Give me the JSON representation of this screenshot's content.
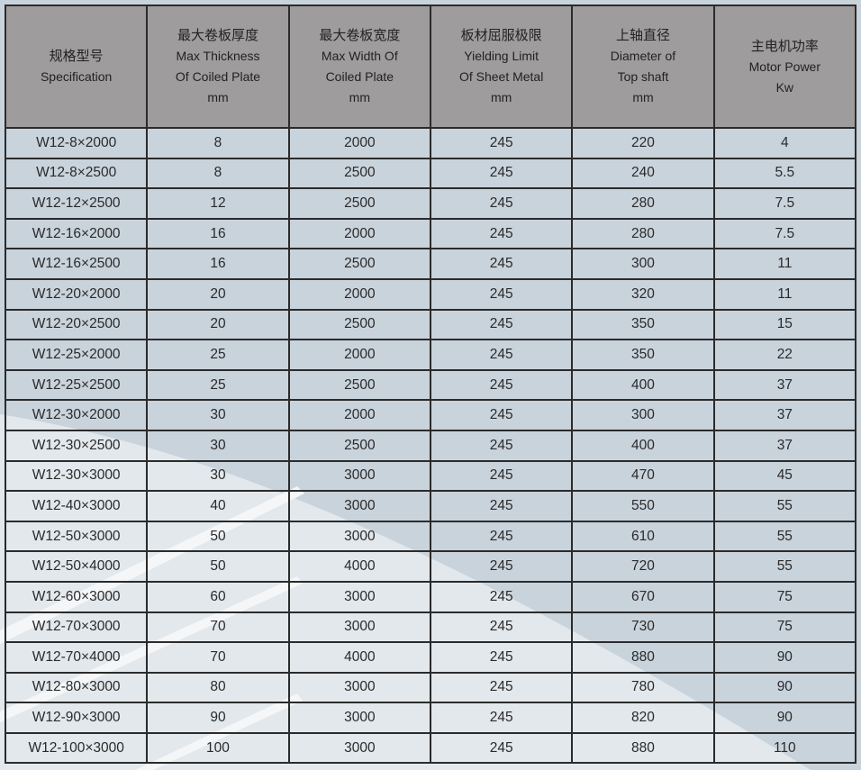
{
  "colors": {
    "header": "#9e9c9d",
    "body": "#c9d3dc",
    "light_region": "#e3e8ec",
    "border": "#2b2b2b"
  },
  "headers": [
    {
      "lines": [
        "规格型号",
        "Specification"
      ]
    },
    {
      "lines": [
        "最大卷板厚度",
        "Max Thickness",
        "Of Coiled Plate",
        "mm"
      ]
    },
    {
      "lines": [
        "最大卷板宽度",
        "Max Width  Of",
        "Coiled Plate",
        "mm"
      ]
    },
    {
      "lines": [
        "板材屈服极限",
        "Yielding Limit",
        "Of  Sheet Metal",
        "mm"
      ]
    },
    {
      "lines": [
        "上轴直径",
        "Diameter of",
        "Top shaft",
        "mm"
      ]
    },
    {
      "lines": [
        "主电机功率",
        "Motor Power",
        "Kw"
      ]
    }
  ],
  "rows": [
    [
      "W12-8×2000",
      "8",
      "2000",
      "245",
      "220",
      "4"
    ],
    [
      "W12-8×2500",
      "8",
      "2500",
      "245",
      "240",
      "5.5"
    ],
    [
      "W12-12×2500",
      "12",
      "2500",
      "245",
      "280",
      "7.5"
    ],
    [
      "W12-16×2000",
      "16",
      "2000",
      "245",
      "280",
      "7.5"
    ],
    [
      "W12-16×2500",
      "16",
      "2500",
      "245",
      "300",
      "11"
    ],
    [
      "W12-20×2000",
      "20",
      "2000",
      "245",
      "320",
      "11"
    ],
    [
      "W12-20×2500",
      "20",
      "2500",
      "245",
      "350",
      "15"
    ],
    [
      "W12-25×2000",
      "25",
      "2000",
      "245",
      "350",
      "22"
    ],
    [
      "W12-25×2500",
      "25",
      "2500",
      "245",
      "400",
      "37"
    ],
    [
      "W12-30×2000",
      "30",
      "2000",
      "245",
      "300",
      "37"
    ],
    [
      "W12-30×2500",
      "30",
      "2500",
      "245",
      "400",
      "37"
    ],
    [
      "W12-30×3000",
      "30",
      "3000",
      "245",
      "470",
      "45"
    ],
    [
      "W12-40×3000",
      "40",
      "3000",
      "245",
      "550",
      "55"
    ],
    [
      "W12-50×3000",
      "50",
      "3000",
      "245",
      "610",
      "55"
    ],
    [
      "W12-50×4000",
      "50",
      "4000",
      "245",
      "720",
      "55"
    ],
    [
      "W12-60×3000",
      "60",
      "3000",
      "245",
      "670",
      "75"
    ],
    [
      "W12-70×3000",
      "70",
      "3000",
      "245",
      "730",
      "75"
    ],
    [
      "W12-70×4000",
      "70",
      "4000",
      "245",
      "880",
      "90"
    ],
    [
      "W12-80×3000",
      "80",
      "3000",
      "245",
      "780",
      "90"
    ],
    [
      "W12-90×3000",
      "90",
      "3000",
      "245",
      "820",
      "90"
    ],
    [
      "W12-100×3000",
      "100",
      "3000",
      "245",
      "880",
      "110"
    ]
  ]
}
